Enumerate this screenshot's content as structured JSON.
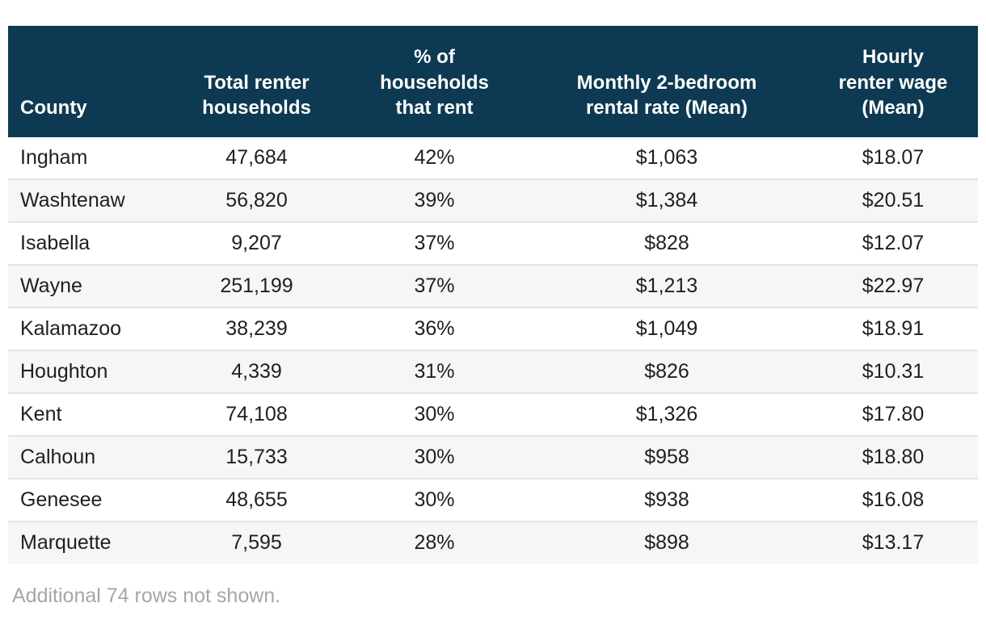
{
  "chart_data": {
    "type": "table",
    "columns": [
      {
        "label": "County",
        "align": "left"
      },
      {
        "label": "Total renter\nhouseholds",
        "align": "center"
      },
      {
        "label": "% of\nhouseholds\nthat rent",
        "align": "center"
      },
      {
        "label": "Monthly 2-bedroom\nrental rate (Mean)",
        "align": "center"
      },
      {
        "label": "Hourly\nrenter wage\n(Mean)",
        "align": "center"
      }
    ],
    "rows": [
      [
        "Ingham",
        "47,684",
        "42%",
        "$1,063",
        "$18.07"
      ],
      [
        "Washtenaw",
        "56,820",
        "39%",
        "$1,384",
        "$20.51"
      ],
      [
        "Isabella",
        "9,207",
        "37%",
        "$828",
        "$12.07"
      ],
      [
        "Wayne",
        "251,199",
        "37%",
        "$1,213",
        "$22.97"
      ],
      [
        "Kalamazoo",
        "38,239",
        "36%",
        "$1,049",
        "$18.91"
      ],
      [
        "Houghton",
        "4,339",
        "31%",
        "$826",
        "$10.31"
      ],
      [
        "Kent",
        "74,108",
        "30%",
        "$1,326",
        "$17.80"
      ],
      [
        "Calhoun",
        "15,733",
        "30%",
        "$958",
        "$18.80"
      ],
      [
        "Genesee",
        "48,655",
        "30%",
        "$938",
        "$16.08"
      ],
      [
        "Marquette",
        "7,595",
        "28%",
        "$898",
        "$13.17"
      ]
    ],
    "footer_note": "Additional 74 rows not shown.",
    "layout_hints": {
      "striped_rows": true,
      "header_vertical_align": "bottom",
      "rows_shown": 10,
      "rows_hidden": 74
    }
  },
  "colors": {
    "header_bg": "#0d3a52",
    "header_text": "#ffffff",
    "row_alt_bg": "#f6f6f6",
    "row_divider": "#e4e4e4",
    "body_text": "#1f1f1f",
    "note_text": "#a6a6a6"
  }
}
